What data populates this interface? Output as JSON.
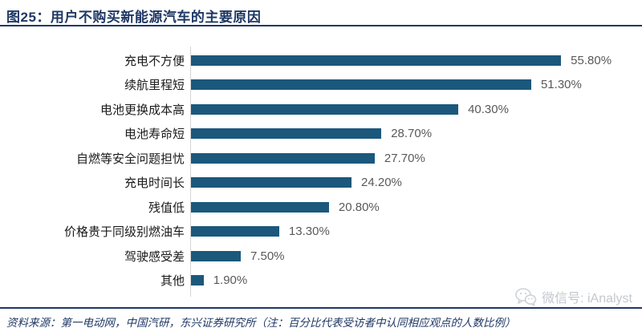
{
  "header": {
    "title": "图25：用户不购买新能源汽车的主要原因"
  },
  "chart_data": {
    "type": "bar",
    "orientation": "horizontal",
    "title": "用户不购买新能源汽车的主要原因",
    "categories": [
      "充电不方便",
      "续航里程短",
      "电池更换成本高",
      "电池寿命短",
      "自燃等安全问题担忧",
      "充电时间长",
      "残值低",
      "价格贵于同级别燃油车",
      "驾驶感受差",
      "其他"
    ],
    "values": [
      55.8,
      51.3,
      40.3,
      28.7,
      27.7,
      24.2,
      20.8,
      13.3,
      7.5,
      1.9
    ],
    "value_labels": [
      "55.80%",
      "51.30%",
      "40.30%",
      "28.70%",
      "27.70%",
      "24.20%",
      "20.80%",
      "13.30%",
      "7.50%",
      "1.90%"
    ],
    "xlabel": "",
    "ylabel": "",
    "xlim": [
      0,
      68
    ],
    "grid": false,
    "legend": "none",
    "data_labels": true
  },
  "footer": {
    "source_note": "资料来源：第一电动网，中国汽研，东兴证券研究所（注：百分比代表受访者中认同相应观点的人数比例）"
  },
  "watermark": {
    "label": "微信号: iAnalyst",
    "icon": "wechat-icon"
  },
  "colors": {
    "title_navy": "#1f3864",
    "bar": "#1b587c",
    "category_text": "#1a1a1a",
    "value_text": "#595959",
    "axis_line": "#d5d5d5",
    "watermark_gray": "#c3c8ce"
  }
}
